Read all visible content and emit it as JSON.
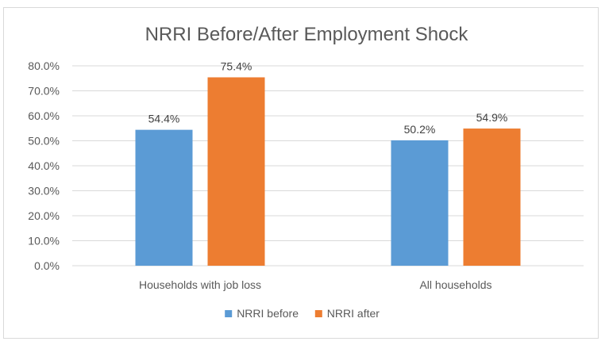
{
  "chart_data": {
    "type": "bar",
    "title": "NRRI Before/After Employment Shock",
    "categories": [
      "Households with job loss",
      "All households"
    ],
    "series": [
      {
        "name": "NRRI before",
        "values": [
          54.4,
          50.2
        ],
        "color": "#5b9bd5",
        "labels": [
          "54.4%",
          "50.2%"
        ]
      },
      {
        "name": "NRRI after",
        "values": [
          75.4,
          54.9
        ],
        "color": "#ed7d31",
        "labels": [
          "75.4%",
          "54.9%"
        ]
      }
    ],
    "ylim": [
      0,
      80
    ],
    "yticks": [
      {
        "value": 0,
        "label": "0.0%"
      },
      {
        "value": 10,
        "label": "10.0%"
      },
      {
        "value": 20,
        "label": "20.0%"
      },
      {
        "value": 30,
        "label": "30.0%"
      },
      {
        "value": 40,
        "label": "40.0%"
      },
      {
        "value": 50,
        "label": "50.0%"
      },
      {
        "value": 60,
        "label": "60.0%"
      },
      {
        "value": 70,
        "label": "70.0%"
      },
      {
        "value": 80,
        "label": "80.0%"
      }
    ],
    "xlabel": "",
    "ylabel": "",
    "grid": true,
    "legend_position": "bottom"
  }
}
